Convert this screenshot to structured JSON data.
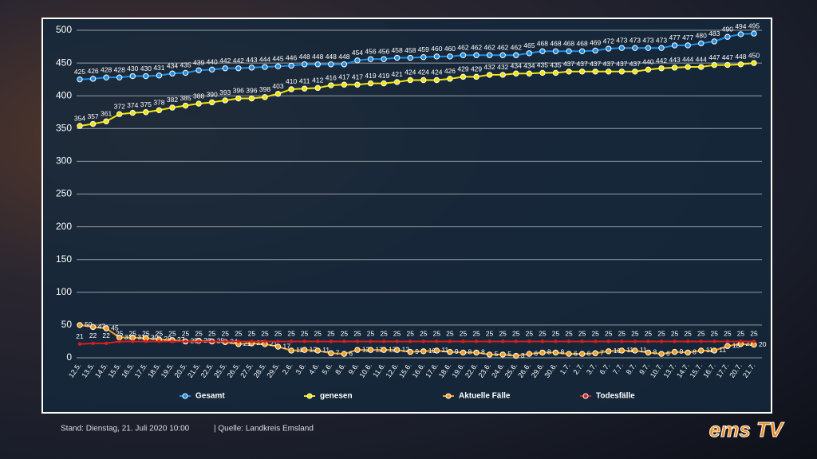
{
  "chart_data": {
    "type": "line",
    "categories": [
      "12.5.",
      "13.5.",
      "14.5.",
      "15.5.",
      "16.5.",
      "17.5.",
      "18.5.",
      "19.5.",
      "20.5.",
      "21.5.",
      "22.5.",
      "25.5.",
      "26.5.",
      "27.5.",
      "28.5.",
      "29.5.",
      "2.6.",
      "3.6.",
      "4.6.",
      "5.6.",
      "8.6.",
      "9.6.",
      "10.6.",
      "11.6.",
      "12.6.",
      "15.6.",
      "16.6.",
      "17.6.",
      "18.6.",
      "19.6.",
      "22.6.",
      "23.6.",
      "24.6.",
      "25.6.",
      "26.6.",
      "29.6.",
      "30.6.",
      "1.7.",
      "2.7.",
      "3.7.",
      "6.7.",
      "7.7.",
      "8.7.",
      "9.7.",
      "10.7.",
      "13.7.",
      "14.7.",
      "15.7.",
      "16.7.",
      "17.7.",
      "20.7.",
      "21.7."
    ],
    "series": [
      {
        "name": "Gesamt",
        "color": "#1e8fe6",
        "values": [
          425,
          426,
          428,
          428,
          430,
          430,
          431,
          434,
          435,
          439,
          440,
          442,
          442,
          443,
          444,
          445,
          446,
          448,
          448,
          448,
          448,
          454,
          456,
          456,
          458,
          458,
          459,
          460,
          460,
          462,
          462,
          462,
          462,
          462,
          465,
          468,
          468,
          468,
          468,
          469,
          472,
          473,
          473,
          473,
          473,
          477,
          477,
          480,
          483,
          490,
          494,
          495
        ]
      },
      {
        "name": "genesen",
        "color": "#f2e600",
        "values": [
          354,
          357,
          361,
          372,
          374,
          375,
          378,
          382,
          385,
          388,
          390,
          393,
          396,
          396,
          398,
          403,
          410,
          411,
          412,
          416,
          417,
          417,
          419,
          419,
          421,
          424,
          424,
          424,
          426,
          429,
          429,
          432,
          432,
          434,
          434,
          435,
          435,
          437,
          437,
          437,
          437,
          437,
          437,
          440,
          442,
          443,
          444,
          444,
          447,
          447,
          448,
          450
        ]
      },
      {
        "name": "Aktuelle Fälle",
        "color": "#f0a020",
        "values": [
          50,
          47,
          45,
          31,
          31,
          30,
          28,
          27,
          25,
          26,
          25,
          24,
          21,
          22,
          21,
          17,
          11,
          12,
          11,
          7,
          6,
          12,
          12,
          12,
          12,
          9,
          10,
          11,
          9,
          8,
          8,
          5,
          5,
          3,
          6,
          8,
          8,
          6,
          6,
          7,
          10,
          11,
          11,
          8,
          6,
          9,
          8,
          11,
          11,
          18,
          21,
          20
        ]
      },
      {
        "name": "Todesfälle",
        "color": "#d42020",
        "values": [
          21,
          22,
          22,
          25,
          25,
          25,
          25,
          25,
          25,
          25,
          25,
          25,
          25,
          25,
          25,
          25,
          25,
          25,
          25,
          25,
          25,
          25,
          25,
          25,
          25,
          25,
          25,
          25,
          25,
          25,
          25,
          25,
          25,
          25,
          25,
          25,
          25,
          25,
          25,
          25,
          25,
          25,
          25,
          25,
          25,
          25,
          25,
          25,
          25,
          25,
          25,
          25
        ]
      }
    ],
    "ylim": [
      0,
      500
    ],
    "yticks": [
      0,
      50,
      100,
      150,
      200,
      250,
      300,
      350,
      400,
      450,
      500
    ],
    "grid": true,
    "legend": "bottom"
  },
  "footer": {
    "stand": "Stand:  Dienstag, 21. Juli 2020 10:00",
    "quelle": "|  Quelle:  Landkreis Emsland"
  },
  "logo": "ems TV"
}
